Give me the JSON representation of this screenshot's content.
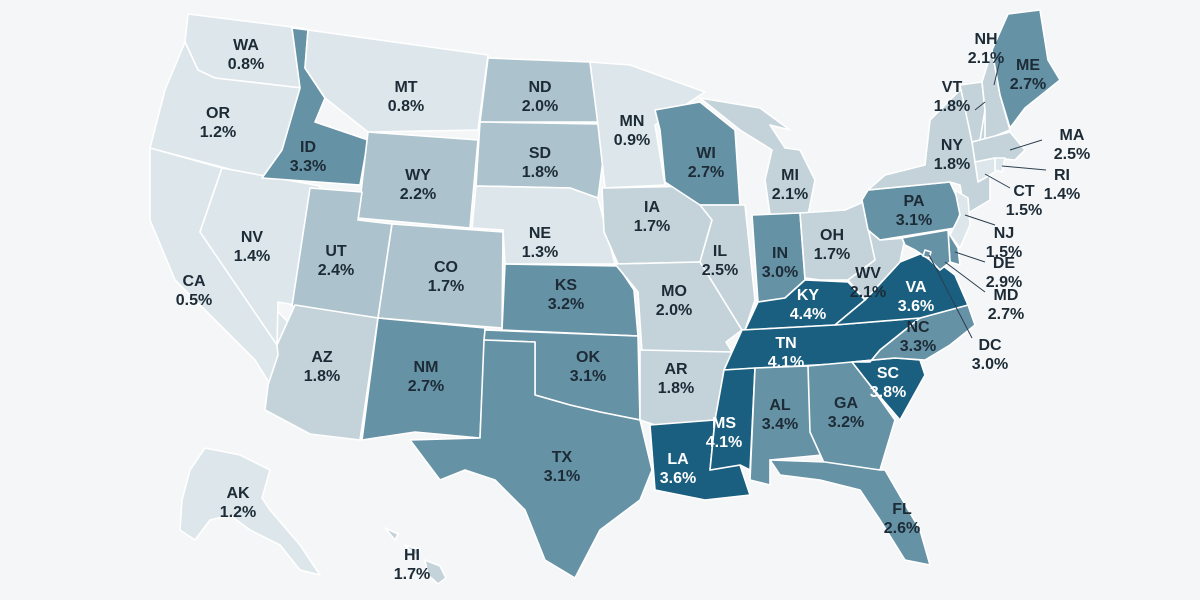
{
  "legend_colors": {
    "lt1": "#dde6ea",
    "lt2": "#c4d3da",
    "lt3": "#acc3cd",
    "mid": "#6692a6",
    "dark": "#1a5f7f"
  },
  "text_colors": {
    "on_light": "#1c2b36",
    "on_dark": "#ffffff"
  },
  "states": [
    {
      "code": "WA",
      "value": "0.8%",
      "shade": "lt1"
    },
    {
      "code": "OR",
      "value": "1.2%",
      "shade": "lt1"
    },
    {
      "code": "CA",
      "value": "0.5%",
      "shade": "lt1"
    },
    {
      "code": "NV",
      "value": "1.4%",
      "shade": "lt1"
    },
    {
      "code": "ID",
      "value": "3.3%",
      "shade": "mid"
    },
    {
      "code": "MT",
      "value": "0.8%",
      "shade": "lt1"
    },
    {
      "code": "WY",
      "value": "2.2%",
      "shade": "lt3"
    },
    {
      "code": "UT",
      "value": "2.4%",
      "shade": "lt3"
    },
    {
      "code": "AZ",
      "value": "1.8%",
      "shade": "lt2"
    },
    {
      "code": "CO",
      "value": "1.7%",
      "shade": "lt3"
    },
    {
      "code": "NM",
      "value": "2.7%",
      "shade": "mid"
    },
    {
      "code": "ND",
      "value": "2.0%",
      "shade": "lt3"
    },
    {
      "code": "SD",
      "value": "1.8%",
      "shade": "lt3"
    },
    {
      "code": "NE",
      "value": "1.3%",
      "shade": "lt1"
    },
    {
      "code": "KS",
      "value": "3.2%",
      "shade": "mid"
    },
    {
      "code": "OK",
      "value": "3.1%",
      "shade": "mid"
    },
    {
      "code": "TX",
      "value": "3.1%",
      "shade": "mid"
    },
    {
      "code": "MN",
      "value": "0.9%",
      "shade": "lt1"
    },
    {
      "code": "IA",
      "value": "1.7%",
      "shade": "lt2"
    },
    {
      "code": "MO",
      "value": "2.0%",
      "shade": "lt2"
    },
    {
      "code": "AR",
      "value": "1.8%",
      "shade": "lt2"
    },
    {
      "code": "LA",
      "value": "3.6%",
      "shade": "dark"
    },
    {
      "code": "WI",
      "value": "2.7%",
      "shade": "mid"
    },
    {
      "code": "IL",
      "value": "2.5%",
      "shade": "lt2"
    },
    {
      "code": "MI",
      "value": "2.1%",
      "shade": "lt2"
    },
    {
      "code": "IN",
      "value": "3.0%",
      "shade": "mid"
    },
    {
      "code": "OH",
      "value": "1.7%",
      "shade": "lt2"
    },
    {
      "code": "KY",
      "value": "4.4%",
      "shade": "dark"
    },
    {
      "code": "TN",
      "value": "4.1%",
      "shade": "dark"
    },
    {
      "code": "MS",
      "value": "4.1%",
      "shade": "dark"
    },
    {
      "code": "AL",
      "value": "3.4%",
      "shade": "mid"
    },
    {
      "code": "GA",
      "value": "3.2%",
      "shade": "mid"
    },
    {
      "code": "FL",
      "value": "2.6%",
      "shade": "mid"
    },
    {
      "code": "SC",
      "value": "3.8%",
      "shade": "dark"
    },
    {
      "code": "NC",
      "value": "3.3%",
      "shade": "mid"
    },
    {
      "code": "VA",
      "value": "3.6%",
      "shade": "dark"
    },
    {
      "code": "WV",
      "value": "2.1%",
      "shade": "lt2"
    },
    {
      "code": "PA",
      "value": "3.1%",
      "shade": "mid"
    },
    {
      "code": "NY",
      "value": "1.8%",
      "shade": "lt2"
    },
    {
      "code": "VT",
      "value": "1.8%",
      "shade": "lt2"
    },
    {
      "code": "NH",
      "value": "2.1%",
      "shade": "lt2"
    },
    {
      "code": "ME",
      "value": "2.7%",
      "shade": "mid"
    },
    {
      "code": "MA",
      "value": "2.5%",
      "shade": "lt2"
    },
    {
      "code": "RI",
      "value": "1.4%",
      "shade": "lt1"
    },
    {
      "code": "CT",
      "value": "1.5%",
      "shade": "lt1"
    },
    {
      "code": "NJ",
      "value": "1.5%",
      "shade": "lt1"
    },
    {
      "code": "DE",
      "value": "2.9%",
      "shade": "mid"
    },
    {
      "code": "MD",
      "value": "2.7%",
      "shade": "mid"
    },
    {
      "code": "DC",
      "value": "3.0%",
      "shade": "mid"
    },
    {
      "code": "AK",
      "value": "1.2%",
      "shade": "lt1"
    },
    {
      "code": "HI",
      "value": "1.7%",
      "shade": "lt2"
    }
  ]
}
